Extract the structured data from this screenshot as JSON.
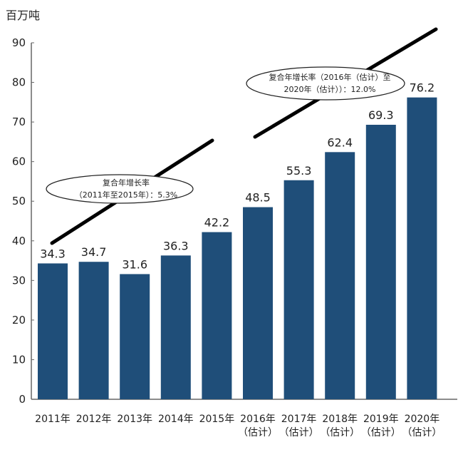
{
  "chart_data": {
    "type": "bar",
    "ylabel": "百万吨",
    "ylim": [
      0,
      90
    ],
    "yticks": [
      "0",
      "10",
      "20",
      "30",
      "40",
      "50",
      "60",
      "70",
      "80",
      "90"
    ],
    "grid": false,
    "categories": [
      [
        "2011年"
      ],
      [
        "2012年"
      ],
      [
        "2013年"
      ],
      [
        "2014年"
      ],
      [
        "2015年"
      ],
      [
        "2016年",
        "（估计）"
      ],
      [
        "2017年",
        "（估计）"
      ],
      [
        "2018年",
        "（估计）"
      ],
      [
        "2019年",
        "（估计）"
      ],
      [
        "2020年",
        "（估计）"
      ]
    ],
    "values": [
      34.3,
      34.7,
      31.6,
      36.3,
      42.2,
      48.5,
      55.3,
      62.4,
      69.3,
      76.2
    ],
    "value_labels": [
      "34.3",
      "34.7",
      "31.6",
      "36.3",
      "42.2",
      "48.5",
      "55.3",
      "62.4",
      "69.3",
      "76.2"
    ],
    "bar_color": "#1f4e79",
    "annotations": [
      {
        "line1": "复合年增长率",
        "line2": "（2011年至2015年）：5.3%"
      },
      {
        "line1": "复合年增长率（2016年（估计）至",
        "line2": "2020年（估计））：12.0%"
      }
    ]
  }
}
